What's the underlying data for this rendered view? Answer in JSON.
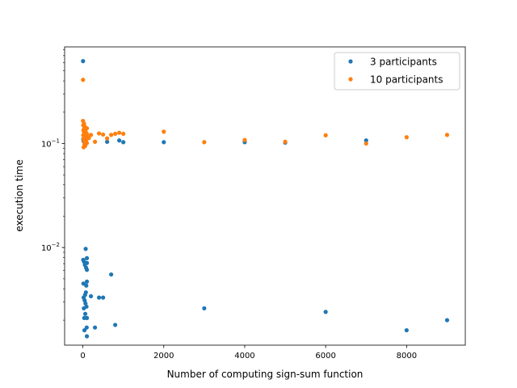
{
  "chart_data": {
    "type": "scatter",
    "title": "",
    "xlabel": "Number of computing sign-sum function",
    "ylabel": "execution time",
    "xlim": [
      -450,
      9450
    ],
    "ylim": [
      0.00115,
      0.85
    ],
    "yscale": "log",
    "grid": false,
    "legend_position": "top-right",
    "x_ticks": [
      0,
      2000,
      4000,
      6000,
      8000
    ],
    "x_tick_labels": [
      "0",
      "2000",
      "4000",
      "6000",
      "8000"
    ],
    "y_ticks": [
      0.01,
      0.1
    ],
    "y_tick_base": "10",
    "y_tick_exponents": [
      "−2",
      "−1"
    ],
    "series": [
      {
        "name": "3 participants",
        "color": "#1f77b4",
        "points": [
          [
            5,
            0.62
          ],
          [
            10,
            0.0076
          ],
          [
            15,
            0.0045
          ],
          [
            20,
            0.0033
          ],
          [
            25,
            0.0026
          ],
          [
            30,
            0.0073
          ],
          [
            35,
            0.0021
          ],
          [
            40,
            0.0016
          ],
          [
            45,
            0.0031
          ],
          [
            50,
            0.0068
          ],
          [
            55,
            0.0035
          ],
          [
            60,
            0.0023
          ],
          [
            65,
            0.0029
          ],
          [
            70,
            0.0097
          ],
          [
            75,
            0.0037
          ],
          [
            80,
            0.0064
          ],
          [
            85,
            0.0043
          ],
          [
            90,
            0.0027
          ],
          [
            95,
            0.0017
          ],
          [
            100,
            0.0079
          ],
          [
            100,
            0.0014
          ],
          [
            100,
            0.0061
          ],
          [
            100,
            0.0047
          ],
          [
            100,
            0.0021
          ],
          [
            100,
            0.0071
          ],
          [
            200,
            0.0034
          ],
          [
            300,
            0.0017
          ],
          [
            400,
            0.0033
          ],
          [
            500,
            0.0033
          ],
          [
            600,
            0.104
          ],
          [
            700,
            0.0055
          ],
          [
            800,
            0.0018
          ],
          [
            900,
            0.107
          ],
          [
            1000,
            0.103
          ],
          [
            2000,
            0.103
          ],
          [
            3000,
            0.0026
          ],
          [
            4000,
            0.103
          ],
          [
            5000,
            0.102
          ],
          [
            6000,
            0.0024
          ],
          [
            7000,
            0.107
          ],
          [
            8000,
            0.0016
          ],
          [
            9000,
            0.002
          ],
          [
            10,
            0.11
          ],
          [
            20,
            0.105
          ],
          [
            30,
            0.108
          ],
          [
            40,
            0.112
          ],
          [
            50,
            0.106
          ],
          [
            60,
            0.115
          ],
          [
            70,
            0.104
          ],
          [
            80,
            0.109
          ]
        ]
      },
      {
        "name": "10 participants",
        "color": "#ff7f0e",
        "points": [
          [
            5,
            0.41
          ],
          [
            5,
            0.165
          ],
          [
            10,
            0.15
          ],
          [
            10,
            0.12
          ],
          [
            15,
            0.135
          ],
          [
            20,
            0.11
          ],
          [
            20,
            0.092
          ],
          [
            25,
            0.13
          ],
          [
            30,
            0.155
          ],
          [
            30,
            0.105
          ],
          [
            35,
            0.125
          ],
          [
            40,
            0.14
          ],
          [
            40,
            0.098
          ],
          [
            45,
            0.118
          ],
          [
            50,
            0.145
          ],
          [
            50,
            0.102
          ],
          [
            55,
            0.128
          ],
          [
            60,
            0.132
          ],
          [
            60,
            0.095
          ],
          [
            65,
            0.112
          ],
          [
            70,
            0.138
          ],
          [
            75,
            0.122
          ],
          [
            80,
            0.115
          ],
          [
            85,
            0.108
          ],
          [
            90,
            0.126
          ],
          [
            95,
            0.119
          ],
          [
            100,
            0.122
          ],
          [
            100,
            0.14
          ],
          [
            100,
            0.101
          ],
          [
            150,
            0.113
          ],
          [
            200,
            0.121
          ],
          [
            300,
            0.104
          ],
          [
            400,
            0.125
          ],
          [
            500,
            0.122
          ],
          [
            600,
            0.112
          ],
          [
            700,
            0.121
          ],
          [
            800,
            0.124
          ],
          [
            900,
            0.127
          ],
          [
            1000,
            0.124
          ],
          [
            2000,
            0.13
          ],
          [
            3000,
            0.103
          ],
          [
            4000,
            0.108
          ],
          [
            5000,
            0.104
          ],
          [
            6000,
            0.12
          ],
          [
            7000,
            0.1
          ],
          [
            8000,
            0.115
          ],
          [
            9000,
            0.121
          ]
        ]
      }
    ]
  }
}
